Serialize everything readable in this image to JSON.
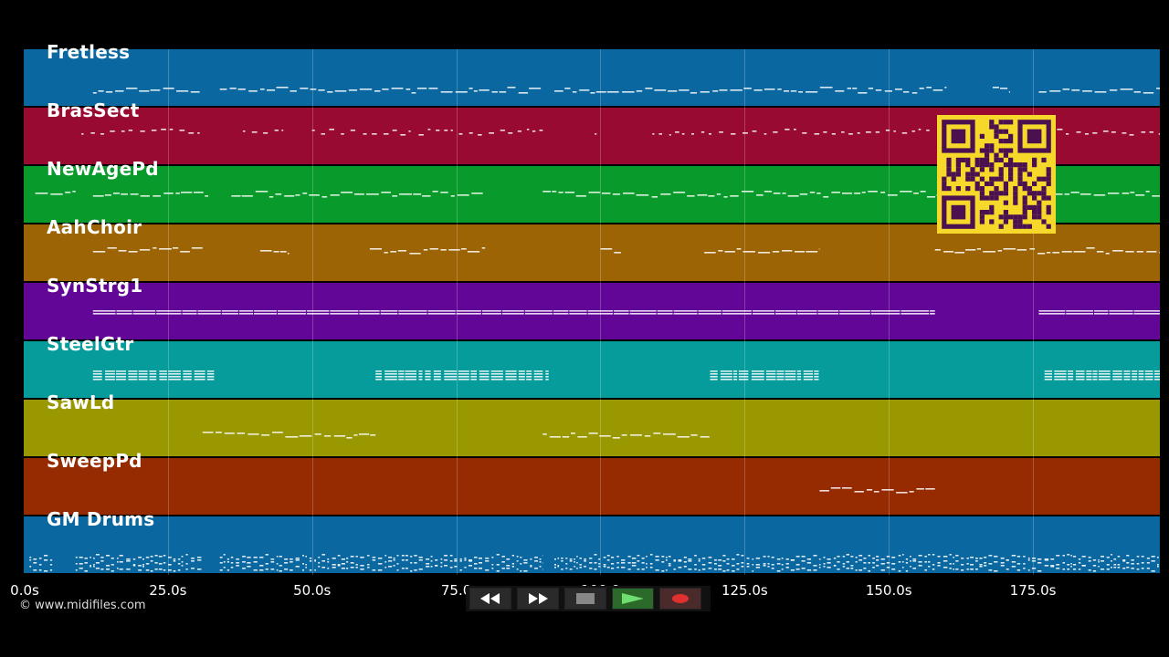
{
  "app": {
    "copyright": "© www.midifiles.com"
  },
  "timeline": {
    "max_seconds": 197,
    "ticks": [
      "0.0s",
      "25.0s",
      "50.0s",
      "75.0",
      "100.0",
      "125.0s",
      "150.0s",
      "175.0s"
    ],
    "tick_values": [
      0,
      25,
      50,
      75,
      100,
      125,
      150,
      175
    ]
  },
  "tracks": [
    {
      "name": "Fretless",
      "color": "#0a67a0",
      "pattern": "bass",
      "segments": [
        [
          12,
          31
        ],
        [
          34,
          90
        ],
        [
          92,
          160
        ],
        [
          168,
          171
        ],
        [
          176,
          197
        ]
      ]
    },
    {
      "name": "BrasSect",
      "color": "#990a30",
      "pattern": "hits",
      "segments": [
        [
          10,
          31
        ],
        [
          38,
          45
        ],
        [
          50,
          90
        ],
        [
          99,
          100
        ],
        [
          109,
          158
        ],
        [
          167,
          197
        ]
      ]
    },
    {
      "name": "NewAgePd",
      "color": "#089a2a",
      "pattern": "pad",
      "segments": [
        [
          2,
          9
        ],
        [
          12,
          32
        ],
        [
          36,
          80
        ],
        [
          90,
          197
        ]
      ]
    },
    {
      "name": "AahChoir",
      "color": "#9c6404",
      "pattern": "choir",
      "segments": [
        [
          12,
          31
        ],
        [
          41,
          46
        ],
        [
          60,
          80
        ],
        [
          100,
          104
        ],
        [
          118,
          138
        ],
        [
          158,
          197
        ]
      ]
    },
    {
      "name": "SynStrg1",
      "color": "#620698",
      "pattern": "string",
      "segments": [
        [
          12,
          158
        ],
        [
          176,
          197
        ]
      ]
    },
    {
      "name": "SteelGtr",
      "color": "#079c9c",
      "pattern": "guitar",
      "segments": [
        [
          12,
          33
        ],
        [
          61,
          91
        ],
        [
          119,
          138
        ],
        [
          177,
          197
        ]
      ]
    },
    {
      "name": "SawLd",
      "color": "#9a9800",
      "pattern": "lead",
      "segments": [
        [
          31,
          61
        ],
        [
          90,
          119
        ]
      ]
    },
    {
      "name": "SweepPd",
      "color": "#962a00",
      "pattern": "sweep",
      "segments": [
        [
          138,
          158
        ]
      ]
    },
    {
      "name": "GM Drums",
      "color": "#0a67a0",
      "pattern": "drums",
      "segments": [
        [
          1,
          5
        ],
        [
          9,
          31
        ],
        [
          34,
          90
        ],
        [
          92,
          197
        ]
      ]
    }
  ],
  "transport": {
    "buttons": [
      {
        "name": "rewind-button",
        "icon": "rewind-icon"
      },
      {
        "name": "fast-forward-button",
        "icon": "fast-forward-icon"
      },
      {
        "name": "stop-button",
        "icon": "stop-icon"
      },
      {
        "name": "play-button",
        "icon": "play-icon"
      },
      {
        "name": "record-button",
        "icon": "record-icon"
      }
    ]
  },
  "overlay": {
    "qr_icon": "qr-code-icon",
    "qr_color": "#f5d82a",
    "qr_dark": "#4a1050"
  }
}
